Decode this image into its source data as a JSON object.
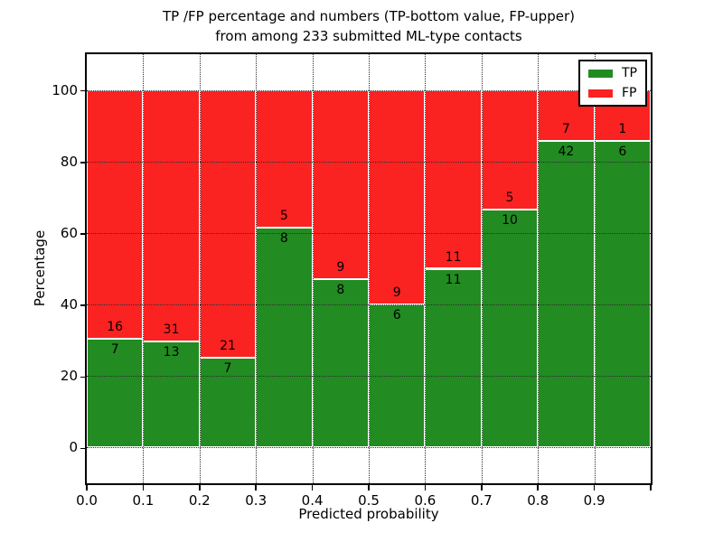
{
  "title": {
    "line1": "TP /FP percentage and numbers (TP-bottom value, FP-upper)",
    "line2": "from among 233 submitted ML-type contacts"
  },
  "axes": {
    "xlabel": "Predicted probability",
    "ylabel": "Percentage"
  },
  "legend": {
    "position": "upper right",
    "items": [
      {
        "label": "TP",
        "color": "#228b22"
      },
      {
        "label": "FP",
        "color": "#fb2222"
      }
    ]
  },
  "chart_data": {
    "type": "bar",
    "stacked": true,
    "normalized": "each 0.1-wide bin scaled to 100%; labels show raw counts (TP bottom, FP upper)",
    "title": "TP /FP percentage and numbers (TP-bottom value, FP-upper) from among 233 submitted ML-type contacts",
    "xlabel": "Predicted probability",
    "ylabel": "Percentage",
    "total_submitted_contacts": 233,
    "bins": [
      {
        "range": "0.0-0.1",
        "tp": 7,
        "fp": 16,
        "tp_percent": 30.4
      },
      {
        "range": "0.1-0.2",
        "tp": 13,
        "fp": 31,
        "tp_percent": 29.5
      },
      {
        "range": "0.2-0.3",
        "tp": 7,
        "fp": 21,
        "tp_percent": 25.0
      },
      {
        "range": "0.3-0.4",
        "tp": 8,
        "fp": 5,
        "tp_percent": 61.5
      },
      {
        "range": "0.4-0.5",
        "tp": 8,
        "fp": 9,
        "tp_percent": 47.1
      },
      {
        "range": "0.5-0.6",
        "tp": 6,
        "fp": 9,
        "tp_percent": 40.0
      },
      {
        "range": "0.6-0.7",
        "tp": 11,
        "fp": 11,
        "tp_percent": 50.0
      },
      {
        "range": "0.7-0.8",
        "tp": 10,
        "fp": 5,
        "tp_percent": 66.7
      },
      {
        "range": "0.8-0.9",
        "tp": 42,
        "fp": 7,
        "tp_percent": 85.7
      },
      {
        "range": "0.9-1.0",
        "tp": 6,
        "fp": 1,
        "tp_percent": 85.7
      }
    ],
    "series": [
      {
        "name": "TP",
        "color": "#228b22",
        "counts": [
          7,
          13,
          7,
          8,
          8,
          6,
          11,
          10,
          42,
          6
        ]
      },
      {
        "name": "FP",
        "color": "#fb2222",
        "counts": [
          16,
          31,
          21,
          5,
          9,
          9,
          11,
          5,
          7,
          1
        ]
      }
    ],
    "xlim": [
      0.0,
      1.0
    ],
    "ylim": [
      -10,
      110
    ],
    "x_ticks": [
      0.0,
      0.1,
      0.2,
      0.3,
      0.4,
      0.5,
      0.6,
      0.7,
      0.8,
      0.9,
      1.0
    ],
    "x_tick_labels": [
      "0.0",
      "0.1",
      "0.2",
      "0.3",
      "0.4",
      "0.5",
      "0.6",
      "0.7",
      "0.8",
      "0.9",
      ""
    ],
    "y_ticks": [
      0,
      20,
      40,
      60,
      80,
      100
    ],
    "y_tick_labels": [
      "0",
      "20",
      "40",
      "60",
      "80",
      "100"
    ],
    "x_gridlines": [
      0.1,
      0.2,
      0.3,
      0.4,
      0.5,
      0.6,
      0.7,
      0.8,
      0.9
    ],
    "grid_style": "dotted",
    "legend_position": "upper right"
  }
}
